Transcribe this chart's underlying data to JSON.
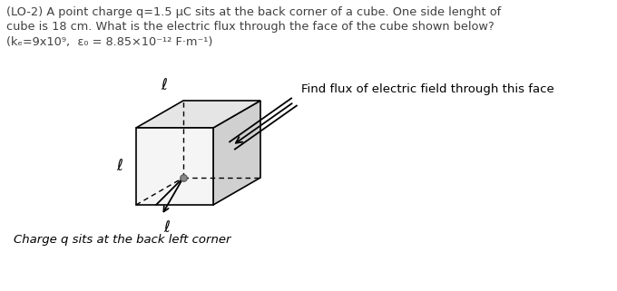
{
  "line1": "(LO-2) A point charge q=1.5 μC sits at the back corner of a cube. One side lenght of",
  "line2": "cube is 18 cm. What is the electric flux through the face of the cube shown below?",
  "line3": "(kₑ=9x10⁹,  ε₀ = 8.85×10⁻¹² F·m⁻¹)",
  "annotation": "Find flux of electric field through this face",
  "bottom_text": "Charge q sits at the back left corner",
  "ell": "ℓ",
  "bg": "#ffffff",
  "text_color": "#404040",
  "black": "#000000",
  "face_front_left": "#c8c8c8",
  "face_right": "#d4d4d4",
  "face_top": "#e8e8e8"
}
